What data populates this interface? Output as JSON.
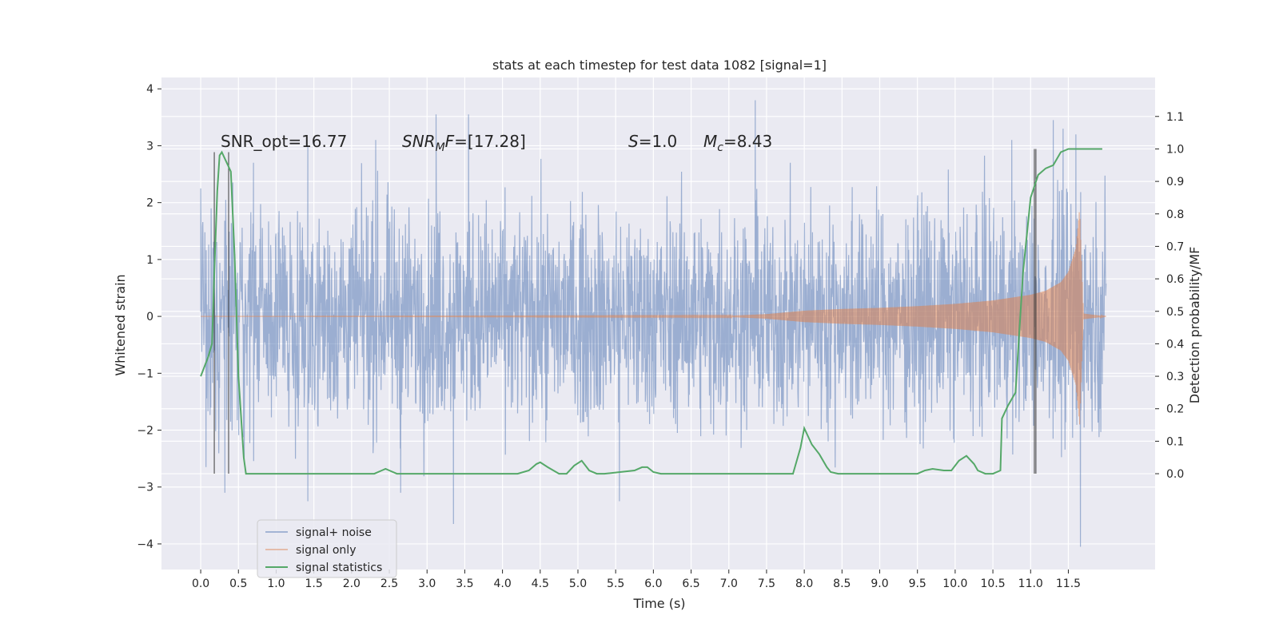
{
  "chart_data": {
    "type": "line",
    "title": "stats at each timestep for test data 1082 [signal=1]",
    "xlabel": "Time (s)",
    "ylabel": "Whitened strain",
    "y2label": "Detection probability/MF",
    "xlim": [
      -0.52,
      12.65
    ],
    "ylim": [
      -4.45,
      4.2
    ],
    "y2lim": [
      -0.295,
      1.22
    ],
    "x_ticks": [
      0.0,
      0.5,
      1.0,
      1.5,
      2.0,
      2.5,
      3.0,
      3.5,
      4.0,
      4.5,
      5.0,
      5.5,
      6.0,
      6.5,
      7.0,
      7.5,
      8.0,
      8.5,
      9.0,
      9.5,
      10.0,
      10.5,
      11.0,
      11.5
    ],
    "x_tick_labels": [
      "0.0",
      "0.5",
      "1.0",
      "1.5",
      "2.0",
      "2.5",
      "3.0",
      "3.5",
      "4.0",
      "4.5",
      "5.0",
      "5.5",
      "6.0",
      "6.5",
      "7.0",
      "7.5",
      "8.0",
      "8.5",
      "9.0",
      "9.5",
      "10.0",
      "10.5",
      "11.0",
      "11.5"
    ],
    "y_ticks": [
      -4,
      -3,
      -2,
      -1,
      0,
      1,
      2,
      3,
      4
    ],
    "y_tick_labels": [
      "−4",
      "−3",
      "−2",
      "−1",
      "0",
      "1",
      "2",
      "3",
      "4"
    ],
    "y2_ticks": [
      0.0,
      0.1,
      0.2,
      0.3,
      0.4,
      0.5,
      0.6,
      0.7,
      0.8,
      0.9,
      1.0,
      1.1
    ],
    "y2_tick_labels": [
      "0.0",
      "0.1",
      "0.2",
      "0.3",
      "0.4",
      "0.5",
      "0.6",
      "0.7",
      "0.8",
      "0.9",
      "1.0",
      "1.1"
    ],
    "grid": true,
    "legend_position": "lower-left",
    "series": [
      {
        "name": "signal+ noise",
        "color": "#4c72b0",
        "description": "whitened noisy strain, dense oscillation",
        "x_range": [
          0.0,
          12.0
        ],
        "typical_amplitude": 1.0,
        "peaks": [
          {
            "x": 0.0,
            "y": 2.25
          },
          {
            "x": 0.7,
            "y": 2.7
          },
          {
            "x": 1.42,
            "y": 3.0
          },
          {
            "x": 2.32,
            "y": 3.1
          },
          {
            "x": 3.12,
            "y": 3.55
          },
          {
            "x": 3.55,
            "y": 3.55
          },
          {
            "x": 7.35,
            "y": 3.8
          },
          {
            "x": 10.75,
            "y": 3.1
          },
          {
            "x": 11.3,
            "y": 3.45
          },
          {
            "x": 11.43,
            "y": 3.3
          },
          {
            "x": 11.6,
            "y": 3.2
          }
        ],
        "troughs": [
          {
            "x": 0.07,
            "y": -2.65
          },
          {
            "x": 0.32,
            "y": -3.1
          },
          {
            "x": 1.42,
            "y": -3.25
          },
          {
            "x": 2.65,
            "y": -3.1
          },
          {
            "x": 3.35,
            "y": -3.65
          },
          {
            "x": 5.55,
            "y": -3.25
          },
          {
            "x": 11.66,
            "y": -4.05
          }
        ]
      },
      {
        "name": "signal only",
        "color": "#dd8452",
        "description": "chirp signal envelope growing toward merger",
        "x": [
          0.0,
          7.0,
          7.5,
          8.0,
          8.5,
          9.0,
          9.5,
          10.0,
          10.5,
          11.0,
          11.2,
          11.4,
          11.5,
          11.6,
          11.65,
          11.7,
          12.0
        ],
        "envelope": [
          0.0,
          0.01,
          0.04,
          0.1,
          0.13,
          0.15,
          0.18,
          0.22,
          0.28,
          0.38,
          0.45,
          0.6,
          0.78,
          1.2,
          1.9,
          0.05,
          0.0
        ]
      },
      {
        "name": "signal statistics",
        "color": "#55a868",
        "axis": "right",
        "x": [
          0.0,
          0.1,
          0.15,
          0.18,
          0.22,
          0.25,
          0.28,
          0.32,
          0.36,
          0.4,
          0.45,
          0.5,
          0.57,
          0.6,
          0.7,
          2.3,
          2.4,
          2.45,
          2.5,
          2.6,
          4.2,
          4.35,
          4.45,
          4.5,
          4.6,
          4.75,
          4.85,
          4.95,
          5.05,
          5.15,
          5.25,
          5.35,
          5.75,
          5.85,
          5.92,
          6.0,
          6.1,
          6.3,
          7.3,
          7.5,
          7.85,
          7.95,
          8.0,
          8.1,
          8.2,
          8.3,
          8.35,
          8.45,
          9.5,
          9.6,
          9.7,
          9.85,
          9.95,
          10.05,
          10.15,
          10.25,
          10.3,
          10.4,
          10.5,
          10.6,
          10.62,
          10.7,
          10.8,
          10.9,
          11.0,
          11.1,
          11.2,
          11.3,
          11.4,
          11.5,
          11.6,
          11.7,
          11.8,
          11.9,
          11.95
        ],
        "y": [
          0.3,
          0.36,
          0.4,
          0.62,
          0.87,
          0.98,
          0.99,
          0.97,
          0.95,
          0.93,
          0.67,
          0.3,
          0.05,
          0.0,
          0.0,
          0.0,
          0.01,
          0.015,
          0.01,
          0.0,
          0.0,
          0.01,
          0.03,
          0.035,
          0.02,
          0.0,
          0.0,
          0.025,
          0.04,
          0.01,
          0.0,
          0.0,
          0.01,
          0.02,
          0.02,
          0.005,
          0.0,
          0.0,
          0.0,
          0.0,
          0.0,
          0.08,
          0.14,
          0.09,
          0.06,
          0.02,
          0.005,
          0.0,
          0.0,
          0.01,
          0.015,
          0.01,
          0.01,
          0.04,
          0.055,
          0.03,
          0.01,
          0.0,
          0.0,
          0.01,
          0.17,
          0.21,
          0.25,
          0.62,
          0.85,
          0.92,
          0.94,
          0.95,
          0.99,
          1.0,
          1.0,
          1.0,
          1.0,
          1.0,
          1.0
        ]
      }
    ],
    "vertical_lines_right_axis": [
      {
        "x": 0.18,
        "ymin": 0.0,
        "ymax": 0.99
      },
      {
        "x": 0.37,
        "ymin": 0.0,
        "ymax": 0.99
      },
      {
        "x": 11.05,
        "ymin": 0.0,
        "ymax": 1.0
      },
      {
        "x": 11.07,
        "ymin": 0.0,
        "ymax": 1.0
      }
    ],
    "annotations": [
      {
        "prefix": "SNR_opt",
        "italic": false,
        "sub": "",
        "value": "=16.77"
      },
      {
        "prefix": "SNR",
        "italic": true,
        "sub": "M",
        "suffix": "F",
        "value": "=[17.28]"
      },
      {
        "prefix": "S",
        "italic": true,
        "sub": "",
        "value": "=1.0"
      },
      {
        "prefix": "M",
        "italic": true,
        "sub": "c",
        "value": "=8.43"
      }
    ],
    "legend": [
      "signal+ noise",
      "signal only",
      "signal statistics"
    ]
  }
}
